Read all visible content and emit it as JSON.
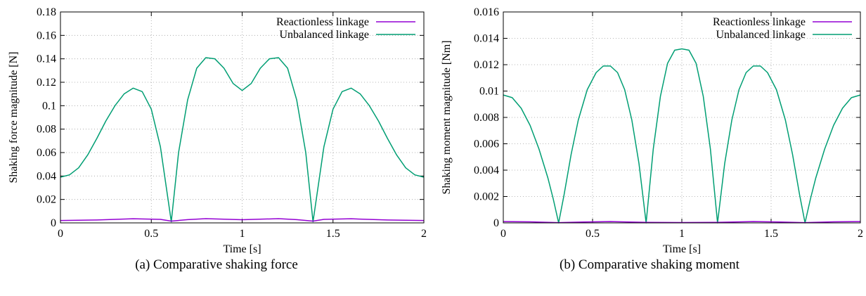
{
  "colors": {
    "reactionless": "#9400d3",
    "unbalanced": "#009e73",
    "grid": "#a0a0a0"
  },
  "chart_data": [
    {
      "type": "line",
      "caption": "(a) Comparative shaking force",
      "xlabel": "Time [s]",
      "ylabel": "Shaking force magnitude [N]",
      "xlim": [
        0,
        2
      ],
      "ylim": [
        0,
        0.18
      ],
      "xticks": [
        0,
        0.5,
        1,
        1.5,
        2
      ],
      "xtick_labels": [
        "0",
        "0.5",
        "1",
        "1.5",
        "2"
      ],
      "yticks": [
        0,
        0.02,
        0.04,
        0.06,
        0.08,
        0.1,
        0.12,
        0.14,
        0.16,
        0.18
      ],
      "ytick_labels": [
        "0",
        "0.02",
        "0.04",
        "0.06",
        "0.08",
        "0.1",
        "0.12",
        "0.14",
        "0.16",
        "0.18"
      ],
      "grid": true,
      "legend_position": "top-right",
      "series": [
        {
          "name": "Reactionless linkage",
          "color_key": "reactionless",
          "x": [
            0,
            0.2,
            0.4,
            0.55,
            0.61,
            0.7,
            0.8,
            1.0,
            1.2,
            1.3,
            1.39,
            1.45,
            1.6,
            1.8,
            2.0
          ],
          "y": [
            0.002,
            0.0025,
            0.0035,
            0.003,
            0.0015,
            0.0028,
            0.0036,
            0.0027,
            0.0036,
            0.0028,
            0.0015,
            0.003,
            0.0035,
            0.0025,
            0.002
          ]
        },
        {
          "name": "Unbalanced linkage",
          "color_key": "unbalanced",
          "x": [
            0,
            0.05,
            0.1,
            0.15,
            0.2,
            0.25,
            0.3,
            0.35,
            0.4,
            0.45,
            0.5,
            0.55,
            0.61,
            0.65,
            0.7,
            0.75,
            0.8,
            0.85,
            0.9,
            0.95,
            1.0,
            1.05,
            1.1,
            1.15,
            1.2,
            1.25,
            1.3,
            1.35,
            1.39,
            1.45,
            1.5,
            1.55,
            1.6,
            1.65,
            1.7,
            1.75,
            1.8,
            1.85,
            1.9,
            1.95,
            2.0
          ],
          "y": [
            0.039,
            0.041,
            0.047,
            0.058,
            0.072,
            0.087,
            0.1,
            0.11,
            0.115,
            0.112,
            0.097,
            0.065,
            0.001,
            0.06,
            0.105,
            0.132,
            0.141,
            0.14,
            0.132,
            0.119,
            0.113,
            0.119,
            0.132,
            0.14,
            0.141,
            0.132,
            0.105,
            0.06,
            0.001,
            0.065,
            0.097,
            0.112,
            0.115,
            0.11,
            0.1,
            0.087,
            0.072,
            0.058,
            0.047,
            0.041,
            0.039
          ]
        }
      ]
    },
    {
      "type": "line",
      "caption": "(b) Comparative shaking moment",
      "xlabel": "Time [s]",
      "ylabel": "Shaking moment magnitude [Nm]",
      "xlim": [
        0,
        2
      ],
      "ylim": [
        0,
        0.016
      ],
      "xticks": [
        0,
        0.5,
        1,
        1.5,
        2
      ],
      "xtick_labels": [
        "0",
        "0.5",
        "1",
        "1.5",
        "2"
      ],
      "yticks": [
        0,
        0.002,
        0.004,
        0.006,
        0.008,
        0.01,
        0.012,
        0.014,
        0.016
      ],
      "ytick_labels": [
        "0",
        "0.002",
        "0.004",
        "0.006",
        "0.008",
        "0.01",
        "0.012",
        "0.014",
        "0.016"
      ],
      "grid": true,
      "legend_position": "top-right",
      "series": [
        {
          "name": "Reactionless linkage",
          "color_key": "reactionless",
          "x": [
            0,
            0.15,
            0.31,
            0.45,
            0.6,
            0.8,
            1.0,
            1.2,
            1.4,
            1.55,
            1.69,
            1.85,
            2.0
          ],
          "y": [
            0.0001,
            8e-05,
            2e-05,
            7e-05,
            0.0001,
            4e-05,
            3e-05,
            4e-05,
            0.0001,
            7e-05,
            2e-05,
            8e-05,
            0.0001
          ]
        },
        {
          "name": "Unbalanced linkage",
          "color_key": "unbalanced",
          "x": [
            0,
            0.05,
            0.1,
            0.15,
            0.2,
            0.25,
            0.28,
            0.31,
            0.34,
            0.38,
            0.42,
            0.47,
            0.52,
            0.56,
            0.6,
            0.64,
            0.68,
            0.72,
            0.76,
            0.8,
            0.84,
            0.88,
            0.92,
            0.96,
            1.0,
            1.04,
            1.08,
            1.12,
            1.16,
            1.2,
            1.24,
            1.28,
            1.32,
            1.36,
            1.4,
            1.44,
            1.48,
            1.53,
            1.58,
            1.62,
            1.66,
            1.69,
            1.72,
            1.75,
            1.8,
            1.85,
            1.9,
            1.95,
            2.0
          ],
          "y": [
            0.0097,
            0.0095,
            0.0087,
            0.0074,
            0.0056,
            0.0034,
            0.0018,
            0.0,
            0.0021,
            0.0052,
            0.0078,
            0.0101,
            0.0114,
            0.0119,
            0.0119,
            0.0114,
            0.0101,
            0.0078,
            0.0045,
            0.0,
            0.0056,
            0.0096,
            0.0121,
            0.0131,
            0.0132,
            0.0131,
            0.0121,
            0.0096,
            0.0056,
            0.0,
            0.0045,
            0.0078,
            0.0101,
            0.0114,
            0.0119,
            0.0119,
            0.0114,
            0.0101,
            0.0078,
            0.0052,
            0.0021,
            0.0,
            0.0018,
            0.0034,
            0.0056,
            0.0074,
            0.0087,
            0.0095,
            0.0097
          ]
        }
      ]
    }
  ]
}
